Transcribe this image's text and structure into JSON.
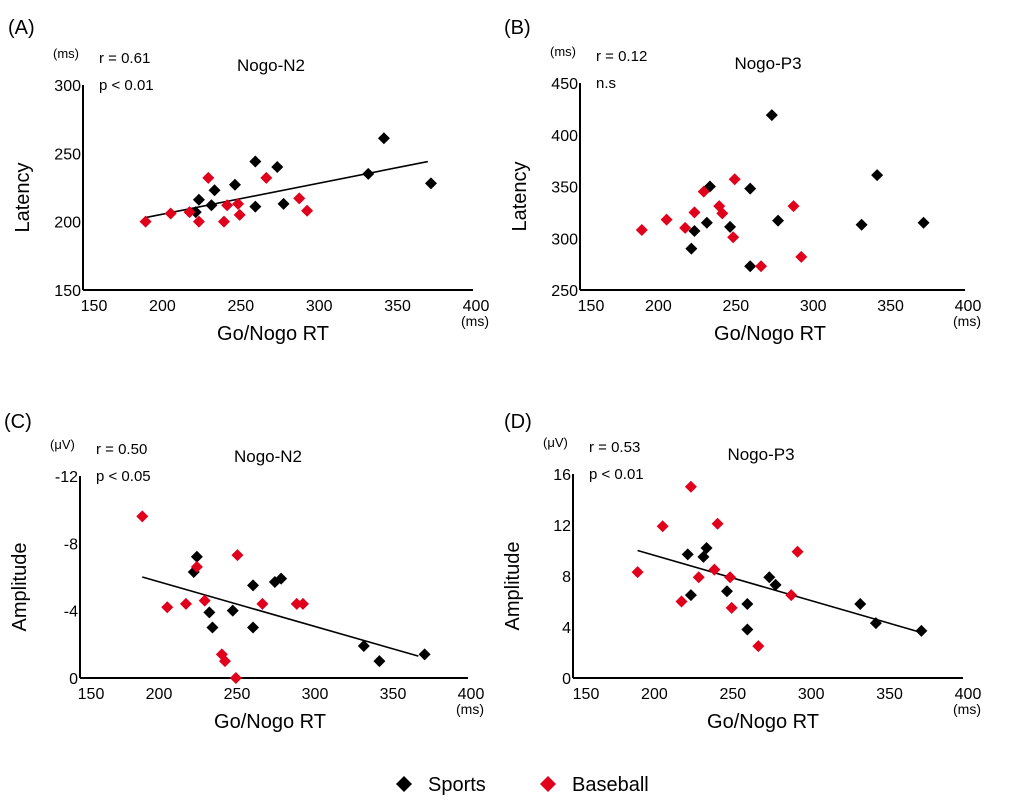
{
  "figure": {
    "legend": [
      {
        "label": "Sports",
        "color": "#000000",
        "marker": "diamond"
      },
      {
        "label": "Baseball",
        "color": "#e0001b",
        "marker": "diamond"
      }
    ]
  },
  "chart_data": [
    {
      "panel": "(A)",
      "type": "scatter",
      "title": "Nogo-N2",
      "stats": [
        "r = 0.61",
        "p < 0.01"
      ],
      "xlabel": "Go/Nogo RT",
      "xunit": "(ms)",
      "ylabel": "Latency",
      "yunit": "(ms)",
      "xlim": [
        150,
        400
      ],
      "ylim": [
        150,
        300
      ],
      "xticks": [
        "150",
        "200",
        "250",
        "300",
        "350",
        "400"
      ],
      "yticks": [
        "150",
        "200",
        "250",
        "300"
      ],
      "fit_line": {
        "x": [
          188,
          368
        ],
        "y": [
          203,
          244
        ]
      },
      "series": [
        {
          "name": "Sports",
          "color": "#000000",
          "points": [
            [
              220,
              207
            ],
            [
              222,
              216
            ],
            [
              230,
              212
            ],
            [
              232,
              223
            ],
            [
              245,
              227
            ],
            [
              258,
              211
            ],
            [
              258,
              244
            ],
            [
              272,
              240
            ],
            [
              276,
              213
            ],
            [
              330,
              235
            ],
            [
              340,
              261
            ],
            [
              370,
              228
            ]
          ]
        },
        {
          "name": "Baseball",
          "color": "#e0001b",
          "points": [
            [
              188,
              200
            ],
            [
              204,
              206
            ],
            [
              216,
              207
            ],
            [
              222,
              200
            ],
            [
              228,
              232
            ],
            [
              238,
              200
            ],
            [
              240,
              212
            ],
            [
              247,
              213
            ],
            [
              248,
              205
            ],
            [
              265,
              232
            ],
            [
              286,
              217
            ],
            [
              291,
              208
            ]
          ]
        }
      ]
    },
    {
      "panel": "(B)",
      "type": "scatter",
      "title": "Nogo-P3",
      "stats": [
        "r = 0.12",
        "n.s"
      ],
      "xlabel": "Go/Nogo RT",
      "xunit": "(ms)",
      "ylabel": "Latency",
      "yunit": "(ms)",
      "xlim": [
        150,
        400
      ],
      "ylim": [
        250,
        450
      ],
      "xticks": [
        "150",
        "200",
        "250",
        "300",
        "350",
        "400"
      ],
      "yticks": [
        "250",
        "300",
        "350",
        "400",
        "450"
      ],
      "fit_line": null,
      "series": [
        {
          "name": "Sports",
          "color": "#000000",
          "points": [
            [
              220,
              290
            ],
            [
              222,
              307
            ],
            [
              230,
              315
            ],
            [
              232,
              350
            ],
            [
              245,
              311
            ],
            [
              258,
              273
            ],
            [
              258,
              348
            ],
            [
              272,
              419
            ],
            [
              276,
              317
            ],
            [
              330,
              313
            ],
            [
              340,
              361
            ],
            [
              370,
              315
            ]
          ]
        },
        {
          "name": "Baseball",
          "color": "#e0001b",
          "points": [
            [
              188,
              308
            ],
            [
              204,
              318
            ],
            [
              216,
              310
            ],
            [
              222,
              325
            ],
            [
              228,
              345
            ],
            [
              238,
              331
            ],
            [
              240,
              324
            ],
            [
              247,
              301
            ],
            [
              248,
              357
            ],
            [
              265,
              273
            ],
            [
              286,
              331
            ],
            [
              291,
              282
            ]
          ]
        }
      ]
    },
    {
      "panel": "(C)",
      "type": "scatter",
      "title": "Nogo-N2",
      "stats": [
        "r = 0.50",
        "p < 0.05"
      ],
      "xlabel": "Go/Nogo RT",
      "xunit": "(ms)",
      "ylabel": "Amplitude",
      "yunit": "(μV)",
      "xlim": [
        150,
        400
      ],
      "ylim": [
        0,
        -12
      ],
      "xticks": [
        "150",
        "200",
        "250",
        "300",
        "350",
        "400"
      ],
      "yticks": [
        "0",
        "-4",
        "-8",
        "-12"
      ],
      "fit_line": {
        "x": [
          188,
          365
        ],
        "y": [
          -6.0,
          -1.3
        ]
      },
      "series": [
        {
          "name": "Sports",
          "color": "#000000",
          "points": [
            [
              221,
              -6.3
            ],
            [
              223,
              -7.2
            ],
            [
              231,
              -3.9
            ],
            [
              233,
              -3.0
            ],
            [
              246,
              -4.0
            ],
            [
              259,
              -5.5
            ],
            [
              259,
              -3.0
            ],
            [
              273,
              -5.7
            ],
            [
              277,
              -5.9
            ],
            [
              330,
              -1.9
            ],
            [
              340,
              -1.0
            ],
            [
              369,
              -1.4
            ]
          ]
        },
        {
          "name": "Baseball",
          "color": "#e0001b",
          "points": [
            [
              188,
              -9.6
            ],
            [
              204,
              -4.2
            ],
            [
              216,
              -4.4
            ],
            [
              223,
              -6.6
            ],
            [
              228,
              -4.6
            ],
            [
              239,
              -1.4
            ],
            [
              241,
              -1.0
            ],
            [
              248,
              0
            ],
            [
              249,
              -7.3
            ],
            [
              265,
              -4.4
            ],
            [
              287,
              -4.4
            ],
            [
              291,
              -4.4
            ]
          ]
        }
      ]
    },
    {
      "panel": "(D)",
      "type": "scatter",
      "title": "Nogo-P3",
      "stats": [
        "r = 0.53",
        "p < 0.01"
      ],
      "xlabel": "Go/Nogo RT",
      "xunit": "(ms)",
      "ylabel": "Amplitude",
      "yunit": "(μV)",
      "xlim": [
        150,
        400
      ],
      "ylim": [
        0,
        16
      ],
      "xticks": [
        "150",
        "200",
        "250",
        "300",
        "350",
        "400"
      ],
      "yticks": [
        "0",
        "4",
        "8",
        "12",
        "16"
      ],
      "fit_line": {
        "x": [
          188,
          368
        ],
        "y": [
          10.0,
          3.6
        ]
      },
      "series": [
        {
          "name": "Sports",
          "color": "#000000",
          "points": [
            [
              220,
              9.7
            ],
            [
              222,
              6.5
            ],
            [
              230,
              9.5
            ],
            [
              232,
              10.2
            ],
            [
              245,
              6.8
            ],
            [
              258,
              5.8
            ],
            [
              258,
              3.8
            ],
            [
              272,
              7.9
            ],
            [
              276,
              7.3
            ],
            [
              330,
              5.8
            ],
            [
              340,
              4.3
            ],
            [
              369,
              3.7
            ]
          ]
        },
        {
          "name": "Baseball",
          "color": "#e0001b",
          "points": [
            [
              188,
              8.3
            ],
            [
              204,
              11.9
            ],
            [
              216,
              6.0
            ],
            [
              222,
              15.0
            ],
            [
              227,
              7.9
            ],
            [
              237,
              8.5
            ],
            [
              239,
              12.1
            ],
            [
              247,
              7.9
            ],
            [
              248,
              5.5
            ],
            [
              265,
              2.5
            ],
            [
              286,
              6.5
            ],
            [
              290,
              9.9
            ]
          ]
        }
      ]
    }
  ]
}
